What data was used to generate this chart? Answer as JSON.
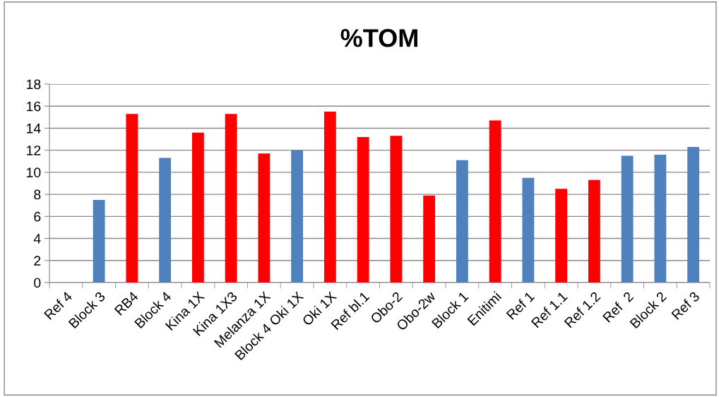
{
  "chart_data": {
    "type": "bar",
    "title": "%TOM",
    "categories": [
      "Ref 4",
      "Block 3",
      "RB4",
      "Block 4",
      "Kina 1X",
      "Kina 1X3",
      "Melanza 1X",
      "Block 4 Oki 1X",
      "Oki 1X",
      "Ref bl.1",
      "Obo-2",
      "Obo-2w",
      "Block 1",
      "Enitimi",
      "Ref 1",
      "Ref 1.1",
      "Ref 1.2",
      "Ref  2",
      "Block 2",
      "Ref 3"
    ],
    "values": [
      null,
      7.5,
      15.3,
      11.3,
      13.6,
      15.3,
      11.7,
      12.0,
      15.5,
      13.2,
      13.3,
      7.9,
      11.1,
      14.7,
      9.5,
      8.5,
      9.3,
      11.5,
      11.6,
      12.3
    ],
    "colors": [
      "#4f81bd",
      "#4f81bd",
      "#ff0000",
      "#4f81bd",
      "#ff0000",
      "#ff0000",
      "#ff0000",
      "#4f81bd",
      "#ff0000",
      "#ff0000",
      "#ff0000",
      "#ff0000",
      "#4f81bd",
      "#ff0000",
      "#4f81bd",
      "#ff0000",
      "#ff0000",
      "#4f81bd",
      "#4f81bd",
      "#4f81bd"
    ],
    "ylim": [
      0,
      18
    ],
    "yticks": [
      0,
      2,
      4,
      6,
      8,
      10,
      12,
      14,
      16,
      18
    ],
    "grid": "y",
    "legend": false
  }
}
